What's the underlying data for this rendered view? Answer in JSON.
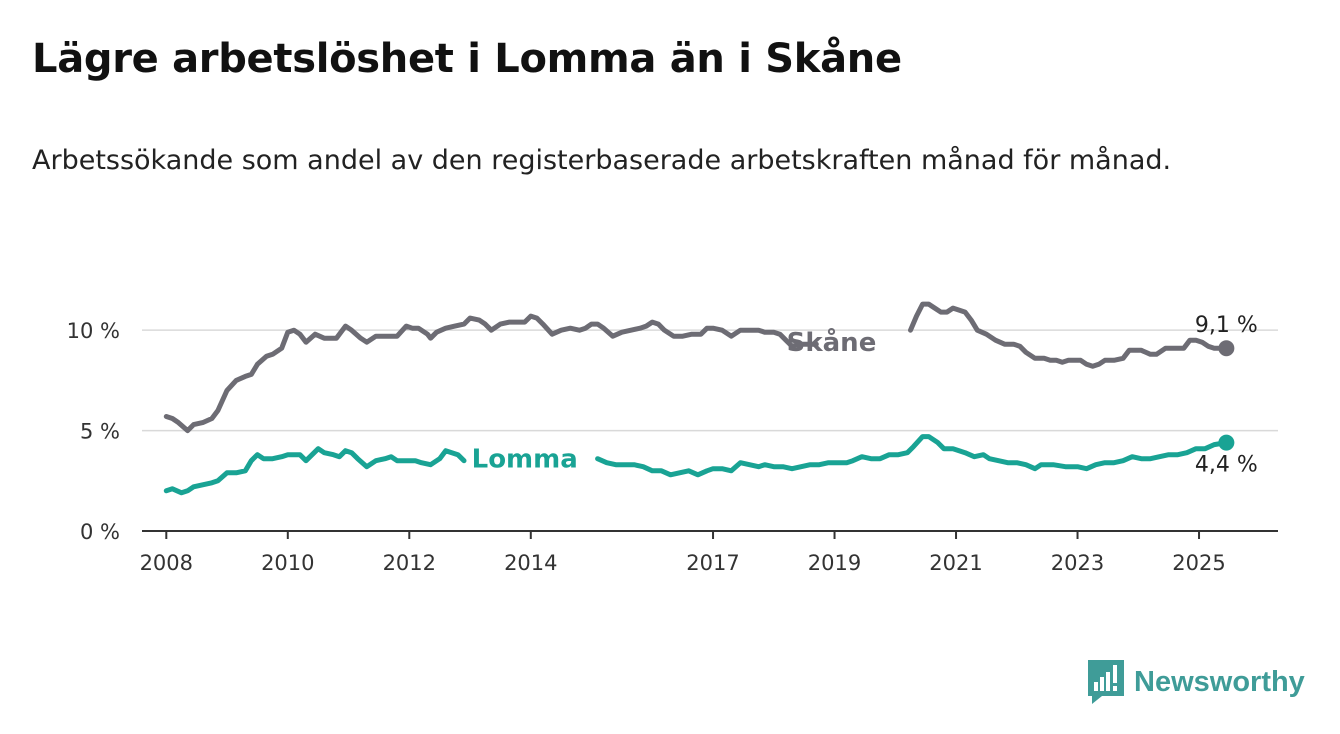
{
  "title": "Lägre arbetslöshet i Lomma än i Skåne",
  "subtitle": "Arbetssökande som andel av den registerbaserade arbetskraften månad för månad.",
  "brand": "Newsworthy",
  "colors": {
    "skane": "#6d6c74",
    "lomma": "#19a394",
    "brand": "#3f9c98"
  },
  "chart_data": {
    "type": "line",
    "ylim": [
      0,
      12
    ],
    "xlim": [
      2007.6,
      2026.3
    ],
    "y_ticks": [
      {
        "value": 0,
        "label": "0 %"
      },
      {
        "value": 5,
        "label": "5 %"
      },
      {
        "value": 10,
        "label": "10 %"
      }
    ],
    "x_ticks": [
      {
        "value": 2008,
        "label": "2008"
      },
      {
        "value": 2010,
        "label": "2010"
      },
      {
        "value": 2012,
        "label": "2012"
      },
      {
        "value": 2014,
        "label": "2014"
      },
      {
        "value": 2017,
        "label": "2017"
      },
      {
        "value": 2019,
        "label": "2019"
      },
      {
        "value": 2021,
        "label": "2021"
      },
      {
        "value": 2023,
        "label": "2023"
      },
      {
        "value": 2025,
        "label": "2025"
      }
    ],
    "grid": true,
    "series": [
      {
        "name": "Skåne",
        "end_label": "9,1 %",
        "points": [
          [
            2008.0,
            5.7
          ],
          [
            2008.1,
            5.6
          ],
          [
            2008.2,
            5.4
          ],
          [
            2008.35,
            5.0
          ],
          [
            2008.45,
            5.3
          ],
          [
            2008.6,
            5.4
          ],
          [
            2008.75,
            5.6
          ],
          [
            2008.85,
            6.0
          ],
          [
            2009.0,
            7.0
          ],
          [
            2009.15,
            7.5
          ],
          [
            2009.3,
            7.7
          ],
          [
            2009.4,
            7.8
          ],
          [
            2009.5,
            8.3
          ],
          [
            2009.65,
            8.7
          ],
          [
            2009.75,
            8.8
          ],
          [
            2009.9,
            9.1
          ],
          [
            2010.0,
            9.9
          ],
          [
            2010.1,
            10.0
          ],
          [
            2010.2,
            9.8
          ],
          [
            2010.3,
            9.4
          ],
          [
            2010.45,
            9.8
          ],
          [
            2010.6,
            9.6
          ],
          [
            2010.8,
            9.6
          ],
          [
            2010.95,
            10.2
          ],
          [
            2011.05,
            10.0
          ],
          [
            2011.2,
            9.6
          ],
          [
            2011.3,
            9.4
          ],
          [
            2011.45,
            9.7
          ],
          [
            2011.6,
            9.7
          ],
          [
            2011.8,
            9.7
          ],
          [
            2011.95,
            10.2
          ],
          [
            2012.05,
            10.1
          ],
          [
            2012.15,
            10.1
          ],
          [
            2012.3,
            9.8
          ],
          [
            2012.35,
            9.6
          ],
          [
            2012.45,
            9.9
          ],
          [
            2012.6,
            10.1
          ],
          [
            2012.75,
            10.2
          ],
          [
            2012.9,
            10.3
          ],
          [
            2013.0,
            10.6
          ],
          [
            2013.15,
            10.5
          ],
          [
            2013.25,
            10.3
          ],
          [
            2013.35,
            10.0
          ],
          [
            2013.5,
            10.3
          ],
          [
            2013.65,
            10.4
          ],
          [
            2013.8,
            10.4
          ],
          [
            2013.9,
            10.4
          ],
          [
            2014.0,
            10.7
          ],
          [
            2014.1,
            10.6
          ],
          [
            2014.2,
            10.3
          ],
          [
            2014.35,
            9.8
          ],
          [
            2014.5,
            10.0
          ],
          [
            2014.65,
            10.1
          ],
          [
            2014.8,
            10.0
          ],
          [
            2014.9,
            10.1
          ],
          [
            2015.0,
            10.3
          ],
          [
            2015.1,
            10.3
          ],
          [
            2015.2,
            10.1
          ],
          [
            2015.35,
            9.7
          ],
          [
            2015.5,
            9.9
          ],
          [
            2015.65,
            10.0
          ],
          [
            2015.8,
            10.1
          ],
          [
            2015.9,
            10.2
          ],
          [
            2016.0,
            10.4
          ],
          [
            2016.1,
            10.3
          ],
          [
            2016.2,
            10.0
          ],
          [
            2016.35,
            9.7
          ],
          [
            2016.5,
            9.7
          ],
          [
            2016.65,
            9.8
          ],
          [
            2016.8,
            9.8
          ],
          [
            2016.9,
            10.1
          ],
          [
            2017.0,
            10.1
          ],
          [
            2017.15,
            10.0
          ],
          [
            2017.3,
            9.7
          ],
          [
            2017.45,
            10.0
          ],
          [
            2017.6,
            10.0
          ],
          [
            2017.75,
            10.0
          ],
          [
            2017.85,
            9.9
          ],
          [
            2018.0,
            9.9
          ],
          [
            2018.1,
            9.8
          ],
          [
            2018.2,
            9.5
          ],
          [
            2018.3,
            9.2
          ],
          [
            2018.45,
            9.3
          ],
          [
            2018.6,
            9.3
          ],
          [
            2018.7,
            9.3
          ],
          null,
          [
            2020.25,
            10.0
          ],
          [
            2020.35,
            10.7
          ],
          [
            2020.45,
            11.3
          ],
          [
            2020.55,
            11.3
          ],
          [
            2020.65,
            11.1
          ],
          [
            2020.75,
            10.9
          ],
          [
            2020.85,
            10.9
          ],
          [
            2020.95,
            11.1
          ],
          [
            2021.05,
            11.0
          ],
          [
            2021.15,
            10.9
          ],
          [
            2021.25,
            10.5
          ],
          [
            2021.35,
            10.0
          ],
          [
            2021.5,
            9.8
          ],
          [
            2021.65,
            9.5
          ],
          [
            2021.8,
            9.3
          ],
          [
            2021.95,
            9.3
          ],
          [
            2022.05,
            9.2
          ],
          [
            2022.15,
            8.9
          ],
          [
            2022.3,
            8.6
          ],
          [
            2022.45,
            8.6
          ],
          [
            2022.55,
            8.5
          ],
          [
            2022.65,
            8.5
          ],
          [
            2022.75,
            8.4
          ],
          [
            2022.85,
            8.5
          ],
          [
            2022.95,
            8.5
          ],
          [
            2023.05,
            8.5
          ],
          [
            2023.15,
            8.3
          ],
          [
            2023.25,
            8.2
          ],
          [
            2023.35,
            8.3
          ],
          [
            2023.45,
            8.5
          ],
          [
            2023.6,
            8.5
          ],
          [
            2023.75,
            8.6
          ],
          [
            2023.85,
            9.0
          ],
          [
            2023.95,
            9.0
          ],
          [
            2024.05,
            9.0
          ],
          [
            2024.2,
            8.8
          ],
          [
            2024.3,
            8.8
          ],
          [
            2024.45,
            9.1
          ],
          [
            2024.6,
            9.1
          ],
          [
            2024.75,
            9.1
          ],
          [
            2024.85,
            9.5
          ],
          [
            2024.95,
            9.5
          ],
          [
            2025.05,
            9.4
          ],
          [
            2025.15,
            9.2
          ],
          [
            2025.25,
            9.1
          ],
          [
            2025.45,
            9.1
          ]
        ],
        "label_at": [
          2018.95,
          9.4
        ]
      },
      {
        "name": "Lomma",
        "end_label": "4,4 %",
        "points": [
          [
            2008.0,
            2.0
          ],
          [
            2008.1,
            2.1
          ],
          [
            2008.25,
            1.9
          ],
          [
            2008.35,
            2.0
          ],
          [
            2008.45,
            2.2
          ],
          [
            2008.6,
            2.3
          ],
          [
            2008.75,
            2.4
          ],
          [
            2008.85,
            2.5
          ],
          [
            2009.0,
            2.9
          ],
          [
            2009.15,
            2.9
          ],
          [
            2009.3,
            3.0
          ],
          [
            2009.4,
            3.5
          ],
          [
            2009.5,
            3.8
          ],
          [
            2009.6,
            3.6
          ],
          [
            2009.75,
            3.6
          ],
          [
            2009.9,
            3.7
          ],
          [
            2010.0,
            3.8
          ],
          [
            2010.2,
            3.8
          ],
          [
            2010.3,
            3.5
          ],
          [
            2010.4,
            3.8
          ],
          [
            2010.5,
            4.1
          ],
          [
            2010.6,
            3.9
          ],
          [
            2010.75,
            3.8
          ],
          [
            2010.85,
            3.7
          ],
          [
            2010.95,
            4.0
          ],
          [
            2011.05,
            3.9
          ],
          [
            2011.15,
            3.6
          ],
          [
            2011.3,
            3.2
          ],
          [
            2011.45,
            3.5
          ],
          [
            2011.6,
            3.6
          ],
          [
            2011.7,
            3.7
          ],
          [
            2011.8,
            3.5
          ],
          [
            2011.95,
            3.5
          ],
          [
            2012.1,
            3.5
          ],
          [
            2012.2,
            3.4
          ],
          [
            2012.35,
            3.3
          ],
          [
            2012.5,
            3.6
          ],
          [
            2012.6,
            4.0
          ],
          [
            2012.7,
            3.9
          ],
          [
            2012.8,
            3.8
          ],
          [
            2012.9,
            3.5
          ],
          null,
          [
            2015.1,
            3.6
          ],
          [
            2015.25,
            3.4
          ],
          [
            2015.4,
            3.3
          ],
          [
            2015.55,
            3.3
          ],
          [
            2015.7,
            3.3
          ],
          [
            2015.85,
            3.2
          ],
          [
            2016.0,
            3.0
          ],
          [
            2016.15,
            3.0
          ],
          [
            2016.3,
            2.8
          ],
          [
            2016.45,
            2.9
          ],
          [
            2016.6,
            3.0
          ],
          [
            2016.75,
            2.8
          ],
          [
            2016.9,
            3.0
          ],
          [
            2017.0,
            3.1
          ],
          [
            2017.15,
            3.1
          ],
          [
            2017.3,
            3.0
          ],
          [
            2017.45,
            3.4
          ],
          [
            2017.6,
            3.3
          ],
          [
            2017.75,
            3.2
          ],
          [
            2017.85,
            3.3
          ],
          [
            2018.0,
            3.2
          ],
          [
            2018.15,
            3.2
          ],
          [
            2018.3,
            3.1
          ],
          [
            2018.45,
            3.2
          ],
          [
            2018.6,
            3.3
          ],
          [
            2018.75,
            3.3
          ],
          [
            2018.9,
            3.4
          ],
          [
            2019.05,
            3.4
          ],
          [
            2019.2,
            3.4
          ],
          [
            2019.3,
            3.5
          ],
          [
            2019.45,
            3.7
          ],
          [
            2019.6,
            3.6
          ],
          [
            2019.75,
            3.6
          ],
          [
            2019.9,
            3.8
          ],
          [
            2020.05,
            3.8
          ],
          [
            2020.2,
            3.9
          ],
          [
            2020.3,
            4.2
          ],
          [
            2020.45,
            4.7
          ],
          [
            2020.55,
            4.7
          ],
          [
            2020.7,
            4.4
          ],
          [
            2020.8,
            4.1
          ],
          [
            2020.95,
            4.1
          ],
          [
            2021.05,
            4.0
          ],
          [
            2021.15,
            3.9
          ],
          [
            2021.3,
            3.7
          ],
          [
            2021.45,
            3.8
          ],
          [
            2021.55,
            3.6
          ],
          [
            2021.7,
            3.5
          ],
          [
            2021.85,
            3.4
          ],
          [
            2022.0,
            3.4
          ],
          [
            2022.15,
            3.3
          ],
          [
            2022.3,
            3.1
          ],
          [
            2022.4,
            3.3
          ],
          [
            2022.6,
            3.3
          ],
          [
            2022.8,
            3.2
          ],
          [
            2023.0,
            3.2
          ],
          [
            2023.15,
            3.1
          ],
          [
            2023.3,
            3.3
          ],
          [
            2023.45,
            3.4
          ],
          [
            2023.6,
            3.4
          ],
          [
            2023.75,
            3.5
          ],
          [
            2023.9,
            3.7
          ],
          [
            2024.05,
            3.6
          ],
          [
            2024.2,
            3.6
          ],
          [
            2024.35,
            3.7
          ],
          [
            2024.5,
            3.8
          ],
          [
            2024.65,
            3.8
          ],
          [
            2024.8,
            3.9
          ],
          [
            2024.95,
            4.1
          ],
          [
            2025.1,
            4.1
          ],
          [
            2025.25,
            4.3
          ],
          [
            2025.45,
            4.4
          ]
        ],
        "label_at": [
          2013.9,
          3.6
        ]
      }
    ]
  }
}
